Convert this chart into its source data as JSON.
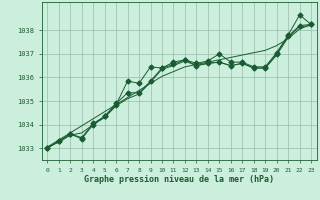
{
  "xlabel": "Graphe pression niveau de la mer (hPa)",
  "background_color": "#cceedd",
  "grid_color": "#99bbaa",
  "line_color": "#1a5c32",
  "ylim": [
    1032.5,
    1039.2
  ],
  "xlim": [
    -0.5,
    23.5
  ],
  "yticks": [
    1033,
    1034,
    1035,
    1036,
    1037,
    1038
  ],
  "xticks": [
    0,
    1,
    2,
    3,
    4,
    5,
    6,
    7,
    8,
    9,
    10,
    11,
    12,
    13,
    14,
    15,
    16,
    17,
    18,
    19,
    20,
    21,
    22,
    23
  ],
  "series_straight": [
    1033.05,
    1033.35,
    1033.65,
    1033.95,
    1034.25,
    1034.55,
    1034.85,
    1035.15,
    1035.45,
    1035.75,
    1036.05,
    1036.25,
    1036.45,
    1036.55,
    1036.65,
    1036.75,
    1036.85,
    1036.95,
    1037.05,
    1037.15,
    1037.35,
    1037.65,
    1038.05,
    1038.25
  ],
  "series_marker1": [
    1033.0,
    1033.3,
    1033.6,
    1033.4,
    1034.0,
    1034.35,
    1034.85,
    1035.85,
    1035.75,
    1036.45,
    1036.4,
    1036.65,
    1036.75,
    1036.6,
    1036.7,
    1037.0,
    1036.65,
    1036.65,
    1036.45,
    1036.45,
    1037.05,
    1037.8,
    1038.65,
    1038.25
  ],
  "series_marker2": [
    1033.0,
    1033.3,
    1033.6,
    1033.45,
    1034.05,
    1034.35,
    1034.9,
    1035.35,
    1035.35,
    1035.85,
    1036.4,
    1036.55,
    1036.75,
    1036.5,
    1036.6,
    1036.65,
    1036.5,
    1036.6,
    1036.4,
    1036.4,
    1037.0,
    1037.75,
    1038.2,
    1038.25
  ],
  "series_smooth": [
    1033.05,
    1033.25,
    1033.55,
    1033.65,
    1034.0,
    1034.3,
    1034.8,
    1035.1,
    1035.3,
    1035.8,
    1036.35,
    1036.5,
    1036.7,
    1036.5,
    1036.6,
    1036.65,
    1036.5,
    1036.6,
    1036.4,
    1036.4,
    1036.95,
    1037.7,
    1038.15,
    1038.2
  ],
  "marker_style": "D",
  "marker_size": 2.5
}
